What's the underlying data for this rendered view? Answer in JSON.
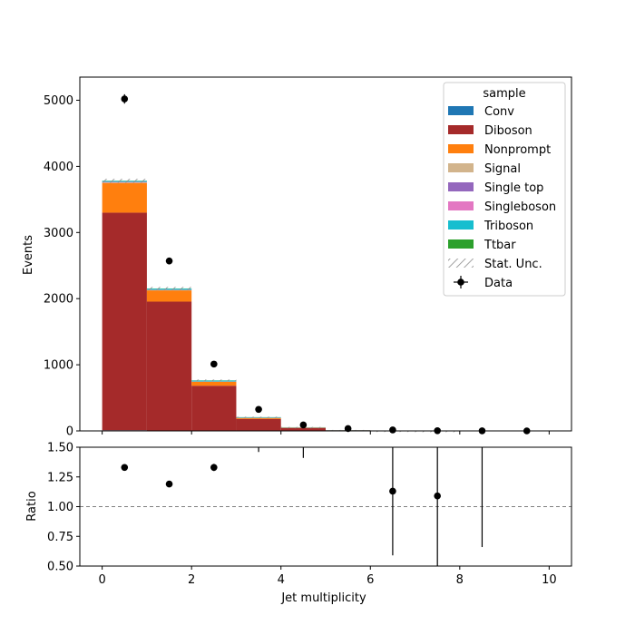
{
  "chart_data": {
    "type": "bar",
    "stacked": true,
    "x_bin_edges": [
      0,
      1,
      2,
      3,
      4,
      5,
      6,
      7,
      8,
      9,
      10
    ],
    "xlabel": "Jet multiplicity",
    "ylabel": "Events",
    "xlim": [
      -0.5,
      10.5
    ],
    "ylim": [
      0,
      5350
    ],
    "x_ticks": [
      "0",
      "2",
      "4",
      "6",
      "8",
      "10"
    ],
    "y_ticks": [
      "0",
      "1000",
      "2000",
      "3000",
      "4000",
      "5000"
    ],
    "legend_title": "sample",
    "legend_position": "upper right",
    "series": [
      {
        "name": "Conv",
        "color": "#1f77b4",
        "values": [
          10,
          5,
          3,
          1,
          0,
          0,
          0,
          0,
          0,
          0
        ]
      },
      {
        "name": "Diboson",
        "color": "#a52a2a",
        "values": [
          3290,
          1950,
          680,
          180,
          45,
          10,
          2,
          0.5,
          0,
          0
        ]
      },
      {
        "name": "Nonprompt",
        "color": "#ff7f0e",
        "values": [
          450,
          170,
          60,
          15,
          5,
          1,
          0.5,
          0,
          0,
          0
        ]
      },
      {
        "name": "Signal",
        "color": "#d2b48c",
        "values": [
          5,
          3,
          2,
          1,
          0.5,
          0,
          0,
          0,
          0,
          0
        ]
      },
      {
        "name": "Single top",
        "color": "#9467bd",
        "values": [
          2,
          2,
          1,
          1,
          0.5,
          0,
          0,
          0,
          0,
          0
        ]
      },
      {
        "name": "Singleboson",
        "color": "#e377c2",
        "values": [
          8,
          3,
          1,
          0.5,
          0,
          0,
          0,
          0,
          0,
          0
        ]
      },
      {
        "name": "Triboson",
        "color": "#17becf",
        "values": [
          15,
          18,
          15,
          8,
          4,
          2,
          1,
          0.5,
          0,
          0
        ]
      },
      {
        "name": "Ttbar",
        "color": "#2ca02c",
        "values": [
          3,
          3,
          2,
          1,
          0.5,
          0,
          0,
          0,
          0,
          0
        ]
      }
    ],
    "stat_unc_label": "Stat. Unc.",
    "data_label": "Data",
    "data_points": {
      "x": [
        0.5,
        1.5,
        2.5,
        3.5,
        4.5,
        5.5,
        6.5,
        7.5,
        8.5,
        9.5
      ],
      "y": [
        5020,
        2570,
        1010,
        325,
        90,
        35,
        15,
        3,
        1,
        0
      ],
      "yerr": [
        71,
        51,
        32,
        18,
        9.5,
        6,
        4,
        1.7,
        1,
        0
      ]
    },
    "ratio": {
      "ylabel": "Ratio",
      "ylim": [
        0.5,
        1.5
      ],
      "y_ticks": [
        "0.50",
        "0.75",
        "1.00",
        "1.25",
        "1.50"
      ],
      "reference_line": 1.0,
      "x": [
        0.5,
        1.5,
        2.5,
        6.5,
        7.5
      ],
      "y": [
        1.33,
        1.19,
        1.33,
        1.13,
        1.09
      ],
      "yerr": [
        0.02,
        0.02,
        0.03,
        0.54,
        1.0
      ],
      "offscale_errors": [
        {
          "x": 3.5,
          "ymin": 1.46
        },
        {
          "x": 4.5,
          "ymin": 1.41
        },
        {
          "x": 8.5,
          "ymin": 0.66
        }
      ]
    }
  }
}
